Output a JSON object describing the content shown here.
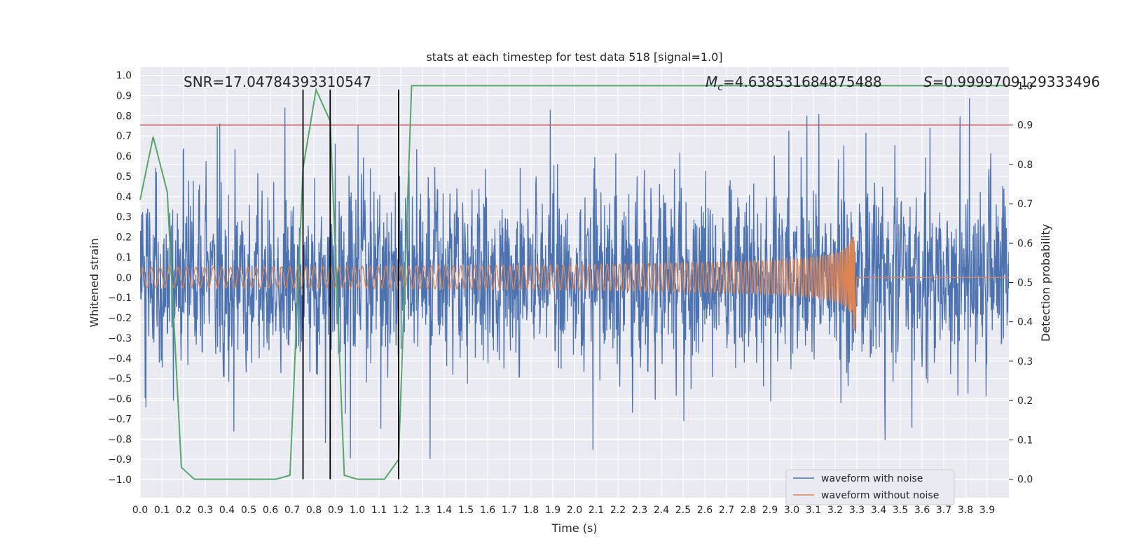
{
  "chart_data": {
    "type": "line",
    "title": "stats at each timestep for test data 518 [signal=1.0]",
    "xlabel": "Time (s)",
    "ylabel_left": "Whitened strain",
    "ylabel_right": "Detection probability",
    "xlim": [
      0.0,
      4.0
    ],
    "ylim_left": [
      -1.09,
      1.04
    ],
    "ylim_right": [
      -0.047,
      1.047
    ],
    "x_ticks": [
      "0.0",
      "0.1",
      "0.2",
      "0.3",
      "0.4",
      "0.5",
      "0.6",
      "0.7",
      "0.8",
      "0.9",
      "1.0",
      "1.1",
      "1.2",
      "1.3",
      "1.4",
      "1.5",
      "1.6",
      "1.7",
      "1.8",
      "1.9",
      "2.0",
      "2.1",
      "2.2",
      "2.3",
      "2.4",
      "2.5",
      "2.6",
      "2.7",
      "2.8",
      "2.9",
      "3.0",
      "3.1",
      "3.2",
      "3.3",
      "3.4",
      "3.5",
      "3.6",
      "3.7",
      "3.8",
      "3.9"
    ],
    "y_ticks_left": [
      "−1.0",
      "−0.9",
      "−0.8",
      "−0.7",
      "−0.6",
      "−0.5",
      "−0.4",
      "−0.3",
      "−0.2",
      "−0.1",
      "0.0",
      "0.1",
      "0.2",
      "0.3",
      "0.4",
      "0.5",
      "0.6",
      "0.7",
      "0.8",
      "0.9",
      "1.0"
    ],
    "y_ticks_right": [
      "0.0",
      "0.1",
      "0.2",
      "0.3",
      "0.4",
      "0.5",
      "0.6",
      "0.7",
      "0.8",
      "0.9",
      "1.0"
    ],
    "grid": true,
    "legend_position": "lower right",
    "annotations": {
      "snr": "SNR=17.04784393310547",
      "mc_symbol": "M",
      "mc_sub": "c",
      "mc_value": "=4.638531684875488",
      "s_symbol": "S",
      "s_value": "=0.9999709129333496"
    },
    "series": [
      {
        "name": "waveform with noise",
        "axis": "left",
        "color": "#4c72b0",
        "description_type": "noisy strain",
        "envelope_max": 0.93,
        "envelope_min": -0.96
      },
      {
        "name": "waveform without noise",
        "axis": "left",
        "color": "#dd8452",
        "description_type": "chirp",
        "start_amplitude": 0.05,
        "peak_amplitude": 0.44,
        "merger_time": 3.29,
        "post_merger_value": 0.0
      },
      {
        "name": "",
        "axis": "right",
        "color": "#55a868",
        "x": [
          0.0,
          0.06,
          0.125,
          0.19,
          0.25,
          0.375,
          0.5,
          0.625,
          0.69,
          0.75,
          0.81,
          0.875,
          0.94,
          1.0,
          1.125,
          1.19,
          1.25,
          3.99
        ],
        "y": [
          0.71,
          0.87,
          0.73,
          0.03,
          0.0,
          0.0,
          0.0,
          0.0,
          0.01,
          0.79,
          0.99,
          0.91,
          0.01,
          0.0,
          0.0,
          0.05,
          1.0,
          1.0
        ]
      }
    ],
    "threshold_line": {
      "axis": "right",
      "value": 0.9,
      "color": "#c44e52"
    },
    "vertical_lines": {
      "color": "#000000",
      "x": [
        0.75,
        0.875,
        1.19
      ],
      "y_range_right": [
        0.0,
        0.99
      ]
    },
    "colors": {
      "background": "#eaeaf2",
      "grid": "#ffffff",
      "text": "#262626"
    }
  }
}
